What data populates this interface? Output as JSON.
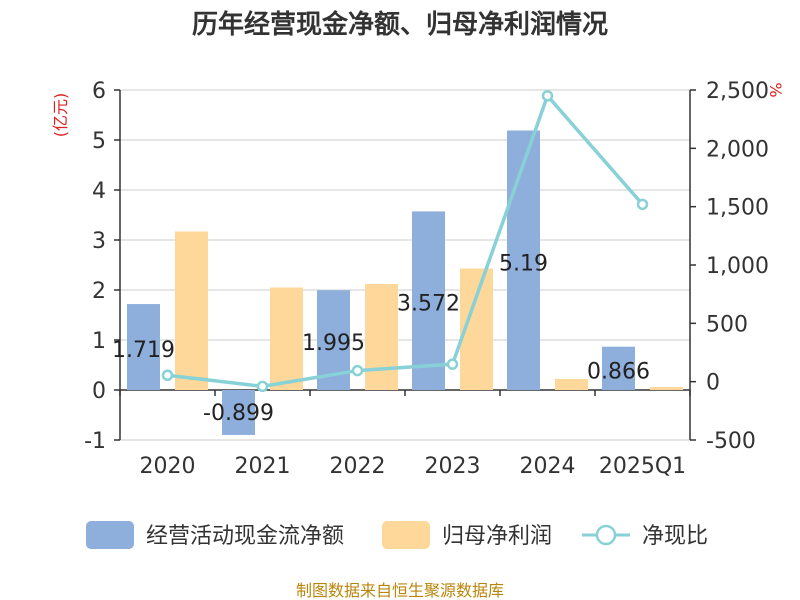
{
  "chart_data": {
    "type": "bar",
    "title": "历年经营现金净额、归母净利润情况",
    "categories": [
      "2020",
      "2021",
      "2022",
      "2023",
      "2024",
      "2025Q1"
    ],
    "y_left": {
      "unit_label": "(亿元)",
      "lim": [
        -1,
        6
      ],
      "ticks": [
        "-1",
        "0",
        "1",
        "2",
        "3",
        "4",
        "5",
        "6"
      ]
    },
    "y_right": {
      "unit_label": "%",
      "lim": [
        -500,
        2500
      ],
      "ticks": [
        "-500",
        "0",
        "500",
        "1,000",
        "1,500",
        "2,000",
        "2,500"
      ]
    },
    "series": [
      {
        "name": "经营活动现金流净额",
        "kind": "bar",
        "axis": "left",
        "color": "#8eaedc",
        "values": [
          1.719,
          -0.899,
          1.995,
          3.572,
          5.19,
          0.866
        ],
        "labels": [
          "1.719",
          "-0.899",
          "1.995",
          "3.572",
          "5.19",
          "0.866"
        ]
      },
      {
        "name": "归母净利润",
        "kind": "bar",
        "axis": "left",
        "color": "#fdd89a",
        "values": [
          3.17,
          2.05,
          2.12,
          2.43,
          0.22,
          0.06
        ]
      },
      {
        "name": "净现比",
        "kind": "line",
        "axis": "right",
        "color": "#88d1d6",
        "values": [
          55,
          -40,
          95,
          150,
          2450,
          1520
        ]
      }
    ],
    "grid": true,
    "legend": "bottom"
  },
  "source": "制图数据来自恒生聚源数据库"
}
